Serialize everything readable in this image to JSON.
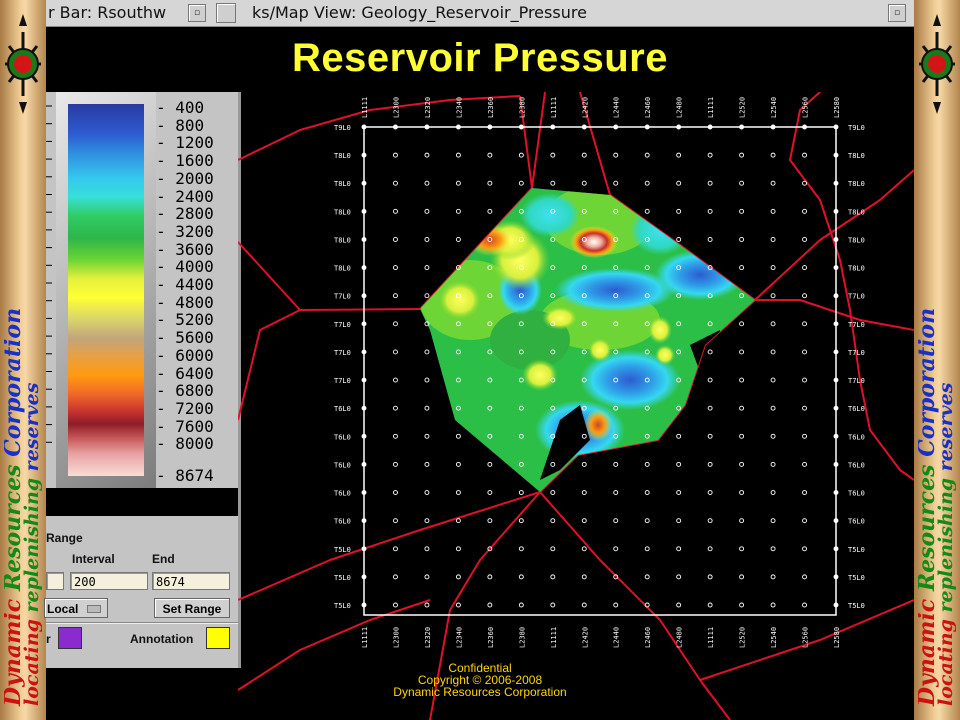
{
  "window": {
    "title_left": "r Bar: Rsouthw",
    "title_right": "ks/Map View: Geology_Reservoir_Pressure",
    "dropdown_glyph": "▫"
  },
  "slide_title": "Reservoir Pressure",
  "side_banner": {
    "company_words": [
      "Dynamic",
      "Resources",
      "Corporation"
    ],
    "tagline_words": [
      "locating",
      "replenishing",
      "reserves"
    ],
    "colors": {
      "red": "#cc1111",
      "green": "#138a13",
      "blue": "#1a2fc9"
    }
  },
  "colorbar": {
    "labels": [
      "400",
      "800",
      "1200",
      "1600",
      "2000",
      "2400",
      "2800",
      "3200",
      "3600",
      "4000",
      "4400",
      "4800",
      "5200",
      "5600",
      "6000",
      "6400",
      "6800",
      "7200",
      "7600",
      "8000",
      "8674"
    ]
  },
  "range": {
    "heading": "Range",
    "interval_label": "Interval",
    "end_label": "End",
    "interval_value": "200",
    "end_value": "8674",
    "mode_value": "Local",
    "set_button": "Set Range",
    "border_label": "r",
    "border_color": "#8a2bd0",
    "annotation_label": "Annotation",
    "annotation_color": "#ffff00"
  },
  "map": {
    "x_ticks": [
      "L1111",
      "L2300",
      "L2320",
      "L2340",
      "L2360",
      "L2380",
      "L1111",
      "L2420",
      "L2440",
      "L2460",
      "L2480",
      "L1111",
      "L2520",
      "L2540",
      "L2560",
      "L2580"
    ],
    "y_ticks": [
      "T9L0",
      "T8L0",
      "T8L0",
      "T8L0",
      "T8L0",
      "T8L0",
      "T7L0",
      "T7L0",
      "T7L0",
      "T7L0",
      "T6L0",
      "T6L0",
      "T6L0",
      "T6L0",
      "T6L0",
      "T5L0",
      "T5L0",
      "T5L0"
    ],
    "boundary_color": "#e0102a",
    "grid_color": "#ffffff"
  },
  "footer": {
    "line1": "Confidential",
    "line2": "Copyright © 2006-2008",
    "line3": "Dynamic Resources Corporation"
  }
}
